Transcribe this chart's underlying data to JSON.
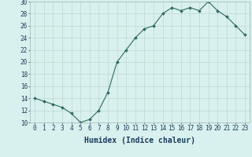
{
  "x": [
    0,
    1,
    2,
    3,
    4,
    5,
    6,
    7,
    8,
    9,
    10,
    11,
    12,
    13,
    14,
    15,
    16,
    17,
    18,
    19,
    20,
    21,
    22,
    23
  ],
  "y": [
    14,
    13.5,
    13,
    12.5,
    11.5,
    10,
    10.5,
    12,
    15,
    20,
    22,
    24,
    25.5,
    26,
    28,
    29,
    28.5,
    29,
    28.5,
    30,
    28.5,
    27.5,
    26,
    24.5
  ],
  "line_color": "#2e6b5e",
  "marker_color": "#2e6b5e",
  "bg_color": "#d8f0ee",
  "grid_color": "#c0d8d4",
  "xlabel": "Humidex (Indice chaleur)",
  "xlabel_color": "#1a3d5c",
  "tick_color": "#1a3d5c",
  "ylim": [
    10,
    30
  ],
  "xlim_min": -0.5,
  "xlim_max": 23.5,
  "yticks": [
    10,
    12,
    14,
    16,
    18,
    20,
    22,
    24,
    26,
    28,
    30
  ],
  "xticks": [
    0,
    1,
    2,
    3,
    4,
    5,
    6,
    7,
    8,
    9,
    10,
    11,
    12,
    13,
    14,
    15,
    16,
    17,
    18,
    19,
    20,
    21,
    22,
    23
  ],
  "tick_fontsize": 5.5,
  "xlabel_fontsize": 7.0
}
